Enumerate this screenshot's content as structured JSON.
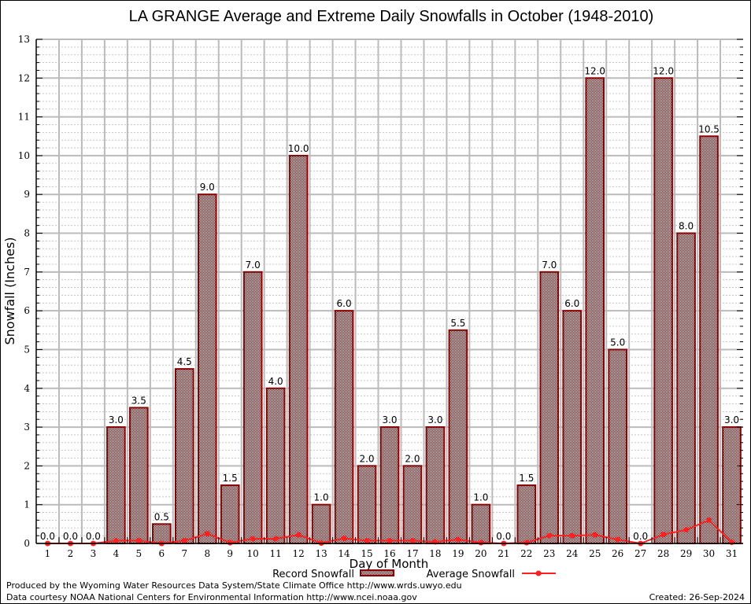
{
  "chart_data": {
    "type": "bar",
    "title": "LA GRANGE Average and Extreme Daily Snowfalls in October (1948-2010)",
    "xlabel": "Day of Month",
    "ylabel": "Snowfall (Inches)",
    "ylim": [
      0,
      13
    ],
    "yticks": [
      "0",
      "1",
      "2",
      "3",
      "4",
      "5",
      "6",
      "7",
      "8",
      "9",
      "10",
      "11",
      "12",
      "13"
    ],
    "grid": true,
    "legend_position": "bottom-center",
    "categories": [
      "1",
      "2",
      "3",
      "4",
      "5",
      "6",
      "7",
      "8",
      "9",
      "10",
      "11",
      "12",
      "13",
      "14",
      "15",
      "16",
      "17",
      "18",
      "19",
      "20",
      "21",
      "22",
      "23",
      "24",
      "25",
      "26",
      "27",
      "28",
      "29",
      "30",
      "31"
    ],
    "series": [
      {
        "name": "Record Snowfall",
        "type": "bar",
        "color": "#8b0000",
        "values": [
          0.0,
          0.0,
          0.0,
          3.0,
          3.5,
          0.5,
          4.5,
          9.0,
          1.5,
          7.0,
          4.0,
          10.0,
          1.0,
          6.0,
          2.0,
          3.0,
          2.0,
          3.0,
          5.5,
          1.0,
          0.0,
          1.5,
          7.0,
          6.0,
          12.0,
          5.0,
          0.0,
          12.0,
          8.0,
          10.5,
          3.0
        ],
        "labels": [
          "0.0",
          "0.0",
          "0.0",
          "3.0",
          "3.5",
          "0.5",
          "4.5",
          "9.0",
          "1.5",
          "7.0",
          "4.0",
          "10.0",
          "1.0",
          "6.0",
          "2.0",
          "3.0",
          "2.0",
          "3.0",
          "5.5",
          "1.0",
          "0.0",
          "1.5",
          "7.0",
          "6.0",
          "12.0",
          "5.0",
          "0.0",
          "12.0",
          "8.0",
          "10.5",
          "3.0"
        ]
      },
      {
        "name": "Average Snowfall",
        "type": "line",
        "color": "#ff2020",
        "values": [
          0.0,
          0.0,
          0.0,
          0.07,
          0.07,
          0.0,
          0.07,
          0.25,
          0.02,
          0.12,
          0.12,
          0.22,
          0.01,
          0.13,
          0.07,
          0.07,
          0.07,
          0.04,
          0.1,
          0.02,
          0.0,
          0.02,
          0.2,
          0.2,
          0.22,
          0.1,
          0.0,
          0.23,
          0.35,
          0.6,
          0.03
        ]
      }
    ]
  },
  "footer": {
    "line1": "Produced by the Wyoming Water Resources Data System/State Climate Office http://www.wrds.uwyo.edu",
    "line2": "Data courtesy NOAA National Centers for Environmental Information http://www.ncei.noaa.gov",
    "created": "Created: 26-Sep-2024"
  }
}
